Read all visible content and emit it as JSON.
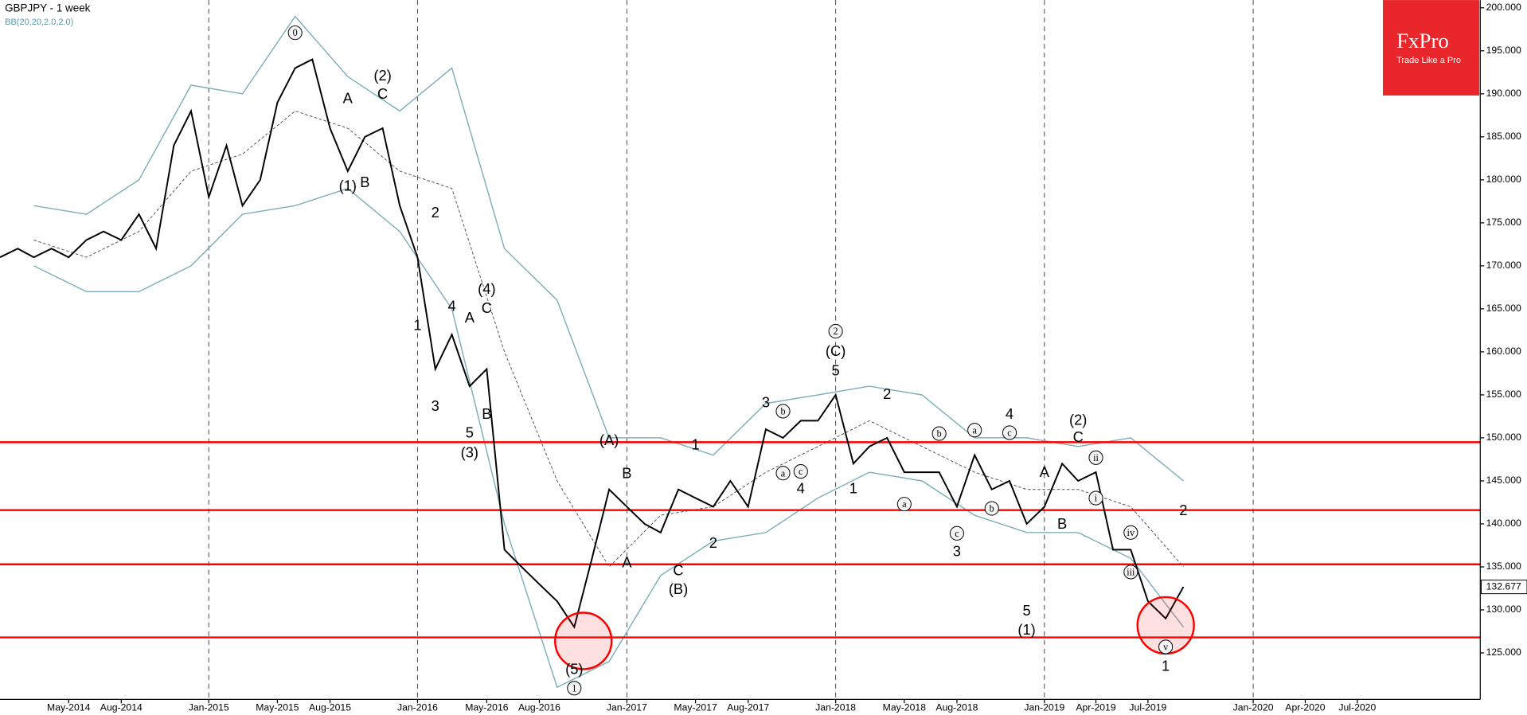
{
  "chart_data": {
    "type": "line",
    "title": "GBPJPY - 1 week",
    "subtitle": "BB(20,20,2.0,2.0)",
    "xlim": [
      "2014-01",
      "2021-02"
    ],
    "ylim": [
      119.6,
      200.9
    ],
    "xticks": [
      {
        "value": "2014-05",
        "label": "May-2014"
      },
      {
        "value": "2014-08",
        "label": "Aug-2014"
      },
      {
        "value": "2015-01",
        "label": "Jan-2015"
      },
      {
        "value": "2015-05",
        "label": "May-2015"
      },
      {
        "value": "2015-08",
        "label": "Aug-2015"
      },
      {
        "value": "2016-01",
        "label": "Jan-2016"
      },
      {
        "value": "2016-05",
        "label": "May-2016"
      },
      {
        "value": "2016-08",
        "label": "Aug-2016"
      },
      {
        "value": "2017-01",
        "label": "Jan-2017"
      },
      {
        "value": "2017-05",
        "label": "May-2017"
      },
      {
        "value": "2017-08",
        "label": "Aug-2017"
      },
      {
        "value": "2018-01",
        "label": "Jan-2018"
      },
      {
        "value": "2018-05",
        "label": "May-2018"
      },
      {
        "value": "2018-08",
        "label": "Aug-2018"
      },
      {
        "value": "2019-01",
        "label": "Jan-2019"
      },
      {
        "value": "2019-04",
        "label": "Apr-2019"
      },
      {
        "value": "2019-07",
        "label": "Jul-2019"
      },
      {
        "value": "2020-01",
        "label": "Jan-2020"
      },
      {
        "value": "2020-04",
        "label": "Apr-2020"
      },
      {
        "value": "2020-07",
        "label": "Jul-2020"
      }
    ],
    "yticks": [
      {
        "value": 125,
        "label": "125.000"
      },
      {
        "value": 130,
        "label": "130.000"
      },
      {
        "value": 135,
        "label": "135.000"
      },
      {
        "value": 140,
        "label": "140.000"
      },
      {
        "value": 145,
        "label": "145.000"
      },
      {
        "value": 150,
        "label": "150.000"
      },
      {
        "value": 155,
        "label": "155.000"
      },
      {
        "value": 160,
        "label": "160.000"
      },
      {
        "value": 165,
        "label": "165.000"
      },
      {
        "value": 170,
        "label": "170.000"
      },
      {
        "value": 175,
        "label": "175.000"
      },
      {
        "value": 180,
        "label": "180.000"
      },
      {
        "value": 185,
        "label": "185.000"
      },
      {
        "value": 190,
        "label": "190.000"
      },
      {
        "value": 195,
        "label": "195.000"
      },
      {
        "value": 200,
        "label": "200.000"
      }
    ],
    "price": {
      "color": "#000000",
      "x": [
        "2014-01",
        "2014-02",
        "2014-03",
        "2014-04",
        "2014-05",
        "2014-06",
        "2014-07",
        "2014-08",
        "2014-09",
        "2014-10",
        "2014-11",
        "2014-12",
        "2015-01",
        "2015-02",
        "2015-03",
        "2015-04",
        "2015-05",
        "2015-06",
        "2015-07",
        "2015-08",
        "2015-09",
        "2015-10",
        "2015-11",
        "2015-12",
        "2016-01",
        "2016-02",
        "2016-03",
        "2016-04",
        "2016-05",
        "2016-06",
        "2016-07",
        "2016-08",
        "2016-09",
        "2016-10",
        "2016-11",
        "2016-12",
        "2017-01",
        "2017-02",
        "2017-03",
        "2017-04",
        "2017-05",
        "2017-06",
        "2017-07",
        "2017-08",
        "2017-09",
        "2017-10",
        "2017-11",
        "2017-12",
        "2018-01",
        "2018-02",
        "2018-03",
        "2018-04",
        "2018-05",
        "2018-06",
        "2018-07",
        "2018-08",
        "2018-09",
        "2018-10",
        "2018-11",
        "2018-12",
        "2019-01",
        "2019-02",
        "2019-03",
        "2019-04",
        "2019-05",
        "2019-06",
        "2019-07",
        "2019-08",
        "2019-09"
      ],
      "values": [
        171,
        172,
        171,
        172,
        171,
        173,
        174,
        173,
        176,
        172,
        184,
        188,
        178,
        184,
        177,
        180,
        189,
        193,
        194,
        186,
        181,
        185,
        186,
        177,
        171,
        158,
        162,
        156,
        158,
        137,
        135,
        133,
        131,
        128,
        136,
        144,
        142,
        140,
        139,
        144,
        143,
        142,
        145,
        142,
        151,
        150,
        152,
        152,
        155,
        147,
        149,
        150,
        146,
        146,
        146,
        142,
        148,
        144,
        145,
        140,
        142,
        147,
        145,
        146,
        137,
        137,
        131,
        129,
        132.677
      ]
    },
    "last_price": 132.677,
    "bollinger": {
      "color": "#7fb0b8",
      "middle_color": "#555555",
      "x": [
        "2014-03",
        "2014-06",
        "2014-09",
        "2014-12",
        "2015-03",
        "2015-06",
        "2015-09",
        "2015-12",
        "2016-03",
        "2016-06",
        "2016-09",
        "2016-12",
        "2017-03",
        "2017-06",
        "2017-09",
        "2017-12",
        "2018-03",
        "2018-06",
        "2018-09",
        "2018-12",
        "2019-03",
        "2019-06",
        "2019-09"
      ],
      "upper": [
        177,
        176,
        180,
        191,
        190,
        199,
        192,
        188,
        193,
        172,
        166,
        150,
        150,
        148,
        154,
        155,
        156,
        155,
        150,
        150,
        149,
        150,
        145
      ],
      "middle": [
        173,
        171,
        174,
        181,
        183,
        188,
        186,
        181,
        179,
        160,
        145,
        135,
        141,
        142,
        146,
        149,
        152,
        149,
        146,
        144,
        144,
        142,
        135
      ],
      "lower": [
        170,
        167,
        167,
        170,
        176,
        177,
        179,
        174,
        165,
        140,
        121,
        124,
        134,
        138,
        139,
        143,
        146,
        145,
        141,
        139,
        139,
        136,
        128
      ]
    },
    "levels": [
      149.5,
      141.6,
      135.3,
      126.8
    ],
    "level_color": "#ff0000",
    "annotations": [
      {
        "text": "0",
        "x": "2015-06",
        "y": 197.1,
        "circled": true
      },
      {
        "text": "(2)",
        "x": "2015-11",
        "y": 192.1
      },
      {
        "text": "A",
        "x": "2015-09",
        "y": 189.5
      },
      {
        "text": "C",
        "x": "2015-11",
        "y": 190.0
      },
      {
        "text": "(1)",
        "x": "2015-09",
        "y": 179.3
      },
      {
        "text": "B",
        "x": "2015-10",
        "y": 179.7
      },
      {
        "text": "2",
        "x": "2016-02",
        "y": 176.2
      },
      {
        "text": "1",
        "x": "2016-01",
        "y": 163.1
      },
      {
        "text": "4",
        "x": "2016-03",
        "y": 165.3
      },
      {
        "text": "3",
        "x": "2016-02",
        "y": 153.7
      },
      {
        "text": "5",
        "x": "2016-04",
        "y": 150.6
      },
      {
        "text": "B",
        "x": "2016-05",
        "y": 152.8
      },
      {
        "text": "(3)",
        "x": "2016-04",
        "y": 148.3
      },
      {
        "text": "A",
        "x": "2016-04",
        "y": 164.0
      },
      {
        "text": "(4)",
        "x": "2016-05",
        "y": 167.3
      },
      {
        "text": "C",
        "x": "2016-05",
        "y": 165.1
      },
      {
        "text": "(5)",
        "x": "2016-10",
        "y": 123.1
      },
      {
        "text": "1",
        "x": "2016-10",
        "y": 120.9,
        "circled": true
      },
      {
        "text": "(A)",
        "x": "2016-12",
        "y": 149.7
      },
      {
        "text": "B",
        "x": "2017-01",
        "y": 145.9
      },
      {
        "text": "A",
        "x": "2017-01",
        "y": 135.5
      },
      {
        "text": "C",
        "x": "2017-04",
        "y": 134.6
      },
      {
        "text": "(B)",
        "x": "2017-04",
        "y": 132.4
      },
      {
        "text": "1",
        "x": "2017-05",
        "y": 149.2
      },
      {
        "text": "2",
        "x": "2017-06",
        "y": 137.8
      },
      {
        "text": "3",
        "x": "2017-09",
        "y": 154.1
      },
      {
        "text": "b",
        "x": "2017-10",
        "y": 153.1,
        "circled": true
      },
      {
        "text": "a",
        "x": "2017-10",
        "y": 145.9,
        "circled": true
      },
      {
        "text": "c",
        "x": "2017-11",
        "y": 146.1,
        "circled": true
      },
      {
        "text": "4",
        "x": "2017-11",
        "y": 144.1
      },
      {
        "text": "2",
        "x": "2018-01",
        "y": 162.4,
        "circled": true
      },
      {
        "text": "(C)",
        "x": "2018-01",
        "y": 160.1
      },
      {
        "text": "5",
        "x": "2018-01",
        "y": 157.8
      },
      {
        "text": "1",
        "x": "2018-02",
        "y": 144.1
      },
      {
        "text": "2",
        "x": "2018-04",
        "y": 155.1
      },
      {
        "text": "b",
        "x": "2018-07",
        "y": 150.5,
        "circled": true
      },
      {
        "text": "a",
        "x": "2018-05",
        "y": 142.3,
        "circled": true
      },
      {
        "text": "c",
        "x": "2018-08",
        "y": 138.9,
        "circled": true
      },
      {
        "text": "3",
        "x": "2018-08",
        "y": 136.8
      },
      {
        "text": "4",
        "x": "2018-11",
        "y": 152.8
      },
      {
        "text": "a",
        "x": "2018-09",
        "y": 150.9,
        "circled": true
      },
      {
        "text": "c",
        "x": "2018-11",
        "y": 150.6,
        "circled": true
      },
      {
        "text": "b",
        "x": "2018-10",
        "y": 141.8,
        "circled": true
      },
      {
        "text": "(2)",
        "x": "2019-03",
        "y": 152.1
      },
      {
        "text": "C",
        "x": "2019-03",
        "y": 150.1
      },
      {
        "text": "A",
        "x": "2019-01",
        "y": 146.0
      },
      {
        "text": "B",
        "x": "2019-02",
        "y": 140.0
      },
      {
        "text": "5",
        "x": "2018-12",
        "y": 129.9
      },
      {
        "text": "(1)",
        "x": "2018-12",
        "y": 127.7
      },
      {
        "text": "ii",
        "x": "2019-04",
        "y": 147.7,
        "circled": true
      },
      {
        "text": "i",
        "x": "2019-04",
        "y": 143.0,
        "circled": true
      },
      {
        "text": "iv",
        "x": "2019-06",
        "y": 139.0,
        "circled": true
      },
      {
        "text": "iii",
        "x": "2019-06",
        "y": 134.4,
        "circled": true
      },
      {
        "text": "v",
        "x": "2019-08",
        "y": 125.7,
        "circled": true
      },
      {
        "text": "1",
        "x": "2019-08",
        "y": 123.5
      },
      {
        "text": "2",
        "x": "2019-09",
        "y": 141.6
      }
    ]
  },
  "logo": {
    "name": "FxPro",
    "tagline": "Trade Like a Pro"
  }
}
